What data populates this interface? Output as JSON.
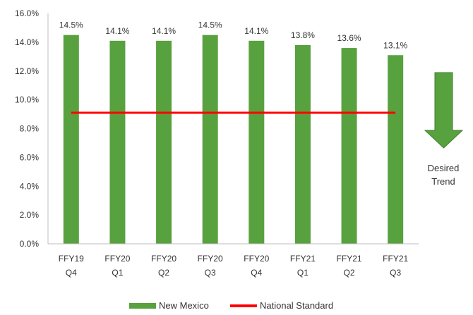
{
  "chart_data": {
    "type": "bar",
    "categories": [
      [
        "FFY19",
        "Q4"
      ],
      [
        "FFY20",
        "Q1"
      ],
      [
        "FFY20",
        "Q2"
      ],
      [
        "FFY20",
        "Q3"
      ],
      [
        "FFY20",
        "Q4"
      ],
      [
        "FFY21",
        "Q1"
      ],
      [
        "FFY21",
        "Q2"
      ],
      [
        "FFY21",
        "Q3"
      ]
    ],
    "series": [
      {
        "name": "New Mexico",
        "kind": "bar",
        "values": [
          14.5,
          14.1,
          14.1,
          14.5,
          14.1,
          13.8,
          13.6,
          13.1
        ],
        "labels": [
          "14.5%",
          "14.1%",
          "14.1%",
          "14.5%",
          "14.1%",
          "13.8%",
          "13.6%",
          "13.1%"
        ]
      },
      {
        "name": "National Standard",
        "kind": "line",
        "values": [
          9.1,
          9.1,
          9.1,
          9.1,
          9.1,
          9.1,
          9.1,
          9.1
        ]
      }
    ],
    "ylim": [
      0,
      16
    ],
    "yticks": [
      "0.0%",
      "2.0%",
      "4.0%",
      "6.0%",
      "8.0%",
      "10.0%",
      "12.0%",
      "14.0%",
      "16.0%"
    ],
    "grid": false,
    "legend_position": "bottom",
    "annotation": {
      "arrow": "down",
      "lines": [
        "Desired",
        "Trend"
      ]
    },
    "colors": {
      "bar": "#58A13F",
      "line": "#FF0000",
      "arrow": "#58A13F",
      "arrow_stroke": "#3E7E2A",
      "axis": "#BFBFBF"
    }
  }
}
